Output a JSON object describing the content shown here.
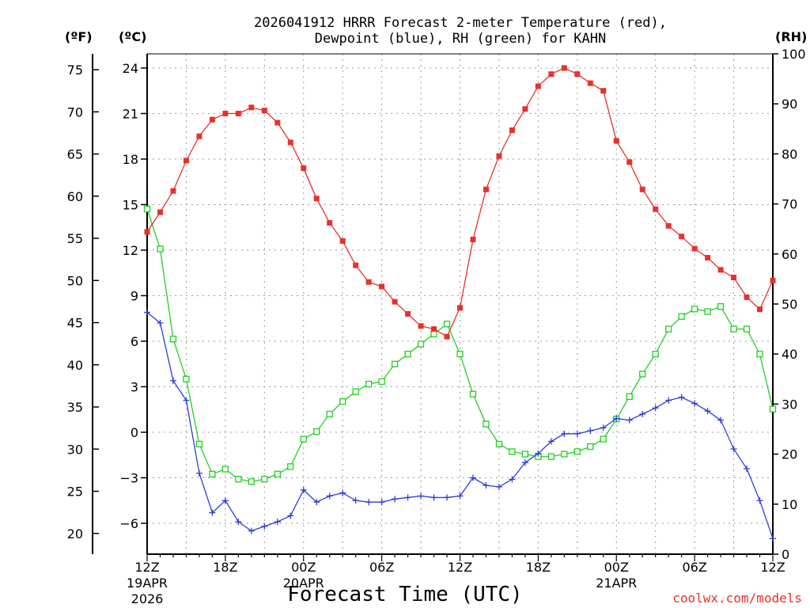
{
  "title_line1": "2026041912 HRRR Forecast 2-meter Temperature (red),",
  "title_line2": "Dewpoint (blue), RH (green) for KAHN",
  "x_axis_label": "Forecast Time (UTC)",
  "credit": "coolwx.com/models",
  "units": {
    "f": "(ºF)",
    "c": "(ºC)",
    "rh": "(RH)"
  },
  "x_ticks": [
    {
      "h": 0,
      "label": "12Z",
      "date1": "19APR",
      "date2": "2026"
    },
    {
      "h": 6,
      "label": "18Z"
    },
    {
      "h": 12,
      "label": "00Z",
      "date1": "20APR"
    },
    {
      "h": 18,
      "label": "06Z"
    },
    {
      "h": 24,
      "label": "12Z"
    },
    {
      "h": 30,
      "label": "18Z"
    },
    {
      "h": 36,
      "label": "00Z",
      "date1": "21APR"
    },
    {
      "h": 42,
      "label": "06Z"
    },
    {
      "h": 48,
      "label": "12Z"
    }
  ],
  "c_ticks": [
    "24",
    "21",
    "18",
    "15",
    "12",
    "9",
    "6",
    "3",
    "0",
    "−3",
    "−6"
  ],
  "f_ticks": [
    "75",
    "70",
    "65",
    "60",
    "55",
    "50",
    "45",
    "40",
    "35",
    "30",
    "25",
    "20"
  ],
  "rh_ticks": [
    "100",
    "90",
    "80",
    "70",
    "60",
    "50",
    "40",
    "30",
    "20",
    "10",
    "0"
  ],
  "colors": {
    "temp": "#e8312a",
    "dewpoint": "#2a3fd6",
    "rh": "#1fd11f"
  },
  "chart_data": {
    "type": "line",
    "x_unit": "forecast hour from 2026-04-19 12Z",
    "x": [
      0,
      1,
      2,
      3,
      4,
      5,
      6,
      7,
      8,
      9,
      10,
      11,
      12,
      13,
      14,
      15,
      16,
      17,
      18,
      19,
      20,
      21,
      22,
      23,
      24,
      25,
      26,
      27,
      28,
      29,
      30,
      31,
      32,
      33,
      34,
      35,
      36,
      37,
      38,
      39,
      40,
      41,
      42,
      43,
      44,
      45,
      46,
      47,
      48
    ],
    "xlim": [
      0,
      48
    ],
    "y_left_c": [
      -8,
      25
    ],
    "y_left_f": [
      18,
      77
    ],
    "y_right_rh": [
      0,
      100
    ],
    "series": [
      {
        "name": "Temperature (red)",
        "axis": "c",
        "marker": "filled-square",
        "values": [
          13.2,
          14.5,
          15.9,
          17.9,
          19.5,
          20.6,
          21.0,
          21.0,
          21.4,
          21.2,
          20.4,
          19.1,
          17.4,
          15.4,
          13.8,
          12.6,
          11.0,
          9.9,
          9.6,
          8.6,
          7.8,
          7.0,
          6.8,
          6.3,
          8.2,
          12.7,
          16.0,
          18.2,
          19.9,
          21.3,
          22.8,
          23.6,
          24.0,
          23.6,
          23.0,
          22.5,
          19.2,
          17.8,
          16.0,
          14.7,
          13.6,
          12.9,
          12.1,
          11.5,
          10.7,
          10.2,
          8.9,
          8.1,
          10.0
        ]
      },
      {
        "name": "Dewpoint (blue)",
        "axis": "c",
        "marker": "plus",
        "values": [
          7.9,
          7.2,
          3.4,
          2.1,
          -2.7,
          -5.3,
          -4.5,
          -5.9,
          -6.5,
          -6.2,
          -5.9,
          -5.5,
          -3.8,
          -4.6,
          -4.2,
          -4.0,
          -4.5,
          -4.6,
          -4.6,
          -4.4,
          -4.3,
          -4.2,
          -4.3,
          -4.3,
          -4.2,
          -3.0,
          -3.5,
          -3.6,
          -3.1,
          -2.0,
          -1.4,
          -0.6,
          -0.1,
          -0.1,
          0.1,
          0.3,
          0.9,
          0.8,
          1.2,
          1.6,
          2.1,
          2.3,
          1.9,
          1.4,
          0.8,
          -1.1,
          -2.4,
          -4.5,
          -7.0
        ]
      },
      {
        "name": "RH (green)",
        "axis": "rh",
        "marker": "open-square",
        "values": [
          69,
          61,
          43,
          35,
          22,
          16,
          17,
          15,
          14.5,
          15,
          16,
          17.5,
          23,
          24.5,
          28,
          30.5,
          32.5,
          34,
          34.5,
          38,
          40,
          42,
          44,
          46,
          40,
          32,
          26,
          22,
          20.5,
          20,
          19.5,
          19.5,
          20,
          20.5,
          21.5,
          23,
          27,
          31.5,
          36,
          40,
          45,
          47.5,
          49,
          48.5,
          49.5,
          45,
          45,
          40,
          29
        ]
      }
    ]
  }
}
